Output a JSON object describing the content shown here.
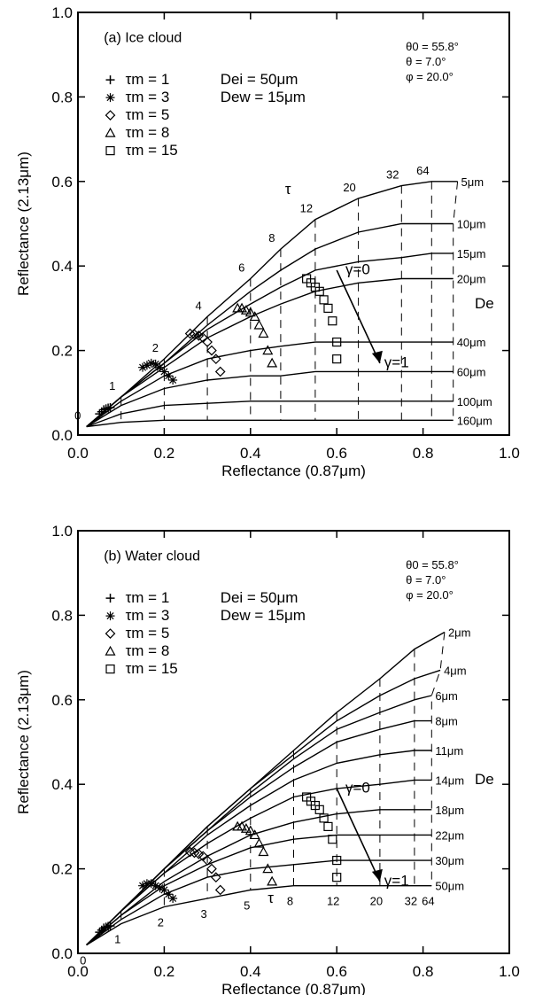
{
  "chart_data": [
    {
      "type": "line",
      "panel_label": "(a) Ice cloud",
      "xlabel": "Reflectance (0.87μm)",
      "ylabel": "Reflectance (2.13μm)",
      "xlim": [
        0.0,
        1.0
      ],
      "ylim": [
        0.0,
        1.0
      ],
      "xticks": [
        "0.0",
        "0.2",
        "0.4",
        "0.6",
        "0.8",
        "1.0"
      ],
      "yticks": [
        "0.0",
        "0.2",
        "0.4",
        "0.6",
        "0.8",
        "1.0"
      ],
      "angles": [
        "θ0 = 55.8°",
        "θ = 7.0°",
        "φ = 20.0°"
      ],
      "legend": [
        {
          "marker": "plus",
          "label": "τm = 1"
        },
        {
          "marker": "asterisk",
          "label": "τm = 3"
        },
        {
          "marker": "diamond",
          "label": "τm = 5"
        },
        {
          "marker": "triangle",
          "label": "τm = 8"
        },
        {
          "marker": "square",
          "label": "τm = 15"
        }
      ],
      "size_params": [
        "Dei = 50μm",
        "Dew = 15μm"
      ],
      "tau_values": [
        "0",
        "1",
        "2",
        "4",
        "6",
        "8",
        "12",
        "20",
        "32",
        "64"
      ],
      "tau_label": "τ",
      "de_label": "De",
      "gamma_labels": [
        "γ=0",
        "γ=1"
      ],
      "gamma_arrow": {
        "from": [
          0.6,
          0.39
        ],
        "to": [
          0.7,
          0.17
        ]
      },
      "series": [
        {
          "name": "5μm",
          "x": [
            0.02,
            0.1,
            0.2,
            0.3,
            0.4,
            0.47,
            0.55,
            0.65,
            0.75,
            0.82,
            0.88
          ],
          "y": [
            0.02,
            0.09,
            0.18,
            0.28,
            0.37,
            0.44,
            0.51,
            0.56,
            0.59,
            0.6,
            0.6
          ]
        },
        {
          "name": "10μm",
          "x": [
            0.02,
            0.1,
            0.2,
            0.3,
            0.4,
            0.47,
            0.55,
            0.65,
            0.75,
            0.82,
            0.87
          ],
          "y": [
            0.02,
            0.09,
            0.17,
            0.26,
            0.34,
            0.39,
            0.44,
            0.48,
            0.5,
            0.5,
            0.5
          ]
        },
        {
          "name": "15μm",
          "x": [
            0.02,
            0.1,
            0.2,
            0.3,
            0.4,
            0.47,
            0.55,
            0.65,
            0.75,
            0.82,
            0.87
          ],
          "y": [
            0.02,
            0.09,
            0.17,
            0.25,
            0.31,
            0.35,
            0.39,
            0.41,
            0.42,
            0.43,
            0.43
          ]
        },
        {
          "name": "20μm",
          "x": [
            0.02,
            0.1,
            0.2,
            0.3,
            0.4,
            0.47,
            0.55,
            0.65,
            0.75,
            0.82,
            0.87
          ],
          "y": [
            0.02,
            0.09,
            0.16,
            0.23,
            0.28,
            0.31,
            0.34,
            0.36,
            0.37,
            0.37,
            0.37
          ]
        },
        {
          "name": "40μm",
          "x": [
            0.02,
            0.1,
            0.2,
            0.3,
            0.4,
            0.47,
            0.55,
            0.65,
            0.75,
            0.82,
            0.87
          ],
          "y": [
            0.02,
            0.08,
            0.14,
            0.18,
            0.2,
            0.21,
            0.22,
            0.22,
            0.22,
            0.22,
            0.22
          ]
        },
        {
          "name": "60μm",
          "x": [
            0.02,
            0.1,
            0.2,
            0.3,
            0.4,
            0.47,
            0.55,
            0.65,
            0.75,
            0.82,
            0.87
          ],
          "y": [
            0.02,
            0.07,
            0.11,
            0.13,
            0.14,
            0.14,
            0.15,
            0.15,
            0.15,
            0.15,
            0.15
          ]
        },
        {
          "name": "100μm",
          "x": [
            0.02,
            0.1,
            0.2,
            0.3,
            0.4,
            0.47,
            0.55,
            0.65,
            0.75,
            0.82,
            0.87
          ],
          "y": [
            0.02,
            0.05,
            0.07,
            0.075,
            0.08,
            0.08,
            0.08,
            0.08,
            0.08,
            0.08,
            0.08
          ]
        },
        {
          "name": "160μm",
          "x": [
            0.02,
            0.1,
            0.2,
            0.3,
            0.4,
            0.47,
            0.55,
            0.65,
            0.75,
            0.82,
            0.87
          ],
          "y": [
            0.02,
            0.03,
            0.035,
            0.035,
            0.035,
            0.035,
            0.035,
            0.035,
            0.035,
            0.035,
            0.035
          ]
        }
      ],
      "markers": {
        "plus": {
          "x": [
            0.05,
            0.055,
            0.06,
            0.065,
            0.07,
            0.075
          ],
          "y": [
            0.05,
            0.055,
            0.06,
            0.062,
            0.064,
            0.065
          ]
        },
        "asterisk": {
          "x": [
            0.15,
            0.16,
            0.17,
            0.18,
            0.19,
            0.2,
            0.21,
            0.22
          ],
          "y": [
            0.16,
            0.165,
            0.17,
            0.168,
            0.16,
            0.15,
            0.14,
            0.13
          ]
        },
        "diamond": {
          "x": [
            0.26,
            0.27,
            0.28,
            0.29,
            0.3,
            0.31,
            0.32,
            0.33
          ],
          "y": [
            0.24,
            0.238,
            0.235,
            0.23,
            0.22,
            0.2,
            0.18,
            0.15
          ]
        },
        "triangle": {
          "x": [
            0.37,
            0.38,
            0.39,
            0.4,
            0.41,
            0.42,
            0.43,
            0.44,
            0.45
          ],
          "y": [
            0.3,
            0.3,
            0.295,
            0.29,
            0.28,
            0.26,
            0.24,
            0.2,
            0.17
          ]
        },
        "square": {
          "x": [
            0.53,
            0.54,
            0.55,
            0.56,
            0.57,
            0.58,
            0.59,
            0.6,
            0.6
          ],
          "y": [
            0.37,
            0.36,
            0.35,
            0.34,
            0.32,
            0.3,
            0.27,
            0.22,
            0.18
          ]
        }
      }
    },
    {
      "type": "line",
      "panel_label": "(b) Water cloud",
      "xlabel": "Reflectance (0.87μm)",
      "ylabel": "Reflectance (2.13μm)",
      "xlim": [
        0.0,
        1.0
      ],
      "ylim": [
        0.0,
        1.0
      ],
      "xticks": [
        "0.0",
        "0.2",
        "0.4",
        "0.6",
        "0.8",
        "1.0"
      ],
      "yticks": [
        "0.0",
        "0.2",
        "0.4",
        "0.6",
        "0.8",
        "1.0"
      ],
      "angles": [
        "θ0 = 55.8°",
        "θ = 7.0°",
        "φ = 20.0°"
      ],
      "legend": [
        {
          "marker": "plus",
          "label": "τm = 1"
        },
        {
          "marker": "asterisk",
          "label": "τm = 3"
        },
        {
          "marker": "diamond",
          "label": "τm = 5"
        },
        {
          "marker": "triangle",
          "label": "τm = 8"
        },
        {
          "marker": "square",
          "label": "τm = 15"
        }
      ],
      "size_params": [
        "Dei = 50μm",
        "Dew = 15μm"
      ],
      "tau_values": [
        "0",
        "1",
        "2",
        "3",
        "5",
        "8",
        "12",
        "20",
        "32",
        "64"
      ],
      "tau_label": "τ",
      "de_label": "De",
      "gamma_labels": [
        "γ=0",
        "γ=1"
      ],
      "gamma_arrow": {
        "from": [
          0.6,
          0.39
        ],
        "to": [
          0.7,
          0.17
        ]
      },
      "series": [
        {
          "name": "2μm",
          "x": [
            0.02,
            0.1,
            0.2,
            0.3,
            0.4,
            0.5,
            0.6,
            0.7,
            0.78,
            0.85
          ],
          "y": [
            0.02,
            0.1,
            0.2,
            0.3,
            0.39,
            0.48,
            0.57,
            0.65,
            0.72,
            0.76
          ]
        },
        {
          "name": "4μm",
          "x": [
            0.02,
            0.1,
            0.2,
            0.3,
            0.4,
            0.5,
            0.6,
            0.7,
            0.78,
            0.84
          ],
          "y": [
            0.02,
            0.1,
            0.2,
            0.3,
            0.39,
            0.47,
            0.55,
            0.61,
            0.65,
            0.67
          ]
        },
        {
          "name": "6μm",
          "x": [
            0.02,
            0.1,
            0.2,
            0.3,
            0.4,
            0.5,
            0.6,
            0.7,
            0.78,
            0.82
          ],
          "y": [
            0.02,
            0.1,
            0.2,
            0.29,
            0.38,
            0.46,
            0.53,
            0.57,
            0.6,
            0.61
          ]
        },
        {
          "name": "8μm",
          "x": [
            0.02,
            0.1,
            0.2,
            0.3,
            0.4,
            0.5,
            0.6,
            0.7,
            0.78,
            0.82
          ],
          "y": [
            0.02,
            0.1,
            0.2,
            0.29,
            0.37,
            0.44,
            0.5,
            0.53,
            0.55,
            0.55
          ]
        },
        {
          "name": "11μm",
          "x": [
            0.02,
            0.1,
            0.2,
            0.3,
            0.4,
            0.5,
            0.6,
            0.7,
            0.78,
            0.82
          ],
          "y": [
            0.02,
            0.1,
            0.19,
            0.28,
            0.35,
            0.41,
            0.45,
            0.47,
            0.48,
            0.48
          ]
        },
        {
          "name": "14μm",
          "x": [
            0.02,
            0.1,
            0.2,
            0.3,
            0.4,
            0.5,
            0.6,
            0.7,
            0.78,
            0.82
          ],
          "y": [
            0.02,
            0.1,
            0.19,
            0.26,
            0.32,
            0.37,
            0.39,
            0.4,
            0.41,
            0.41
          ]
        },
        {
          "name": "18μm",
          "x": [
            0.02,
            0.1,
            0.2,
            0.3,
            0.4,
            0.5,
            0.6,
            0.7,
            0.78,
            0.82
          ],
          "y": [
            0.02,
            0.09,
            0.17,
            0.23,
            0.28,
            0.31,
            0.33,
            0.34,
            0.34,
            0.34
          ]
        },
        {
          "name": "22μm",
          "x": [
            0.02,
            0.1,
            0.2,
            0.3,
            0.4,
            0.5,
            0.6,
            0.7,
            0.78,
            0.82
          ],
          "y": [
            0.02,
            0.09,
            0.16,
            0.21,
            0.25,
            0.27,
            0.28,
            0.28,
            0.28,
            0.28
          ]
        },
        {
          "name": "30μm",
          "x": [
            0.02,
            0.1,
            0.2,
            0.3,
            0.4,
            0.5,
            0.6,
            0.7,
            0.78,
            0.82
          ],
          "y": [
            0.02,
            0.08,
            0.14,
            0.18,
            0.2,
            0.21,
            0.22,
            0.22,
            0.22,
            0.22
          ]
        },
        {
          "name": "50μm",
          "x": [
            0.02,
            0.1,
            0.2,
            0.3,
            0.4,
            0.5,
            0.6,
            0.7,
            0.78,
            0.82
          ],
          "y": [
            0.02,
            0.07,
            0.11,
            0.13,
            0.15,
            0.16,
            0.16,
            0.16,
            0.16,
            0.16
          ]
        }
      ],
      "markers": {
        "plus": {
          "x": [
            0.05,
            0.055,
            0.06,
            0.065,
            0.07,
            0.075
          ],
          "y": [
            0.05,
            0.055,
            0.06,
            0.062,
            0.064,
            0.065
          ]
        },
        "asterisk": {
          "x": [
            0.15,
            0.16,
            0.17,
            0.18,
            0.19,
            0.2,
            0.21,
            0.22
          ],
          "y": [
            0.16,
            0.165,
            0.165,
            0.16,
            0.155,
            0.15,
            0.14,
            0.13
          ]
        },
        "diamond": {
          "x": [
            0.26,
            0.27,
            0.28,
            0.29,
            0.3,
            0.31,
            0.32,
            0.33
          ],
          "y": [
            0.24,
            0.238,
            0.235,
            0.23,
            0.22,
            0.2,
            0.18,
            0.15
          ]
        },
        "triangle": {
          "x": [
            0.37,
            0.38,
            0.39,
            0.4,
            0.41,
            0.42,
            0.43,
            0.44,
            0.45
          ],
          "y": [
            0.3,
            0.3,
            0.295,
            0.29,
            0.28,
            0.26,
            0.24,
            0.2,
            0.17
          ]
        },
        "square": {
          "x": [
            0.53,
            0.54,
            0.55,
            0.56,
            0.57,
            0.58,
            0.59,
            0.6,
            0.6
          ],
          "y": [
            0.37,
            0.36,
            0.35,
            0.34,
            0.32,
            0.3,
            0.27,
            0.22,
            0.18
          ]
        }
      }
    }
  ]
}
